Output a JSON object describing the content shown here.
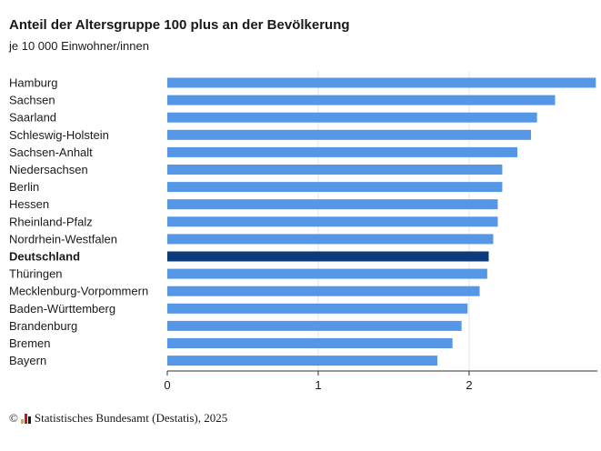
{
  "title": "Anteil der Altersgruppe 100 plus an der Bevölkerung",
  "subtitle": "je 10 000 Einwohner/innen",
  "source": {
    "copyright_symbol": "©",
    "text": "Statistisches Bundesamt (Destatis), 2025",
    "logo_icon": "destatis-logo-icon"
  },
  "colors": {
    "bar": "#5596e6",
    "highlight": "#0c3a7a",
    "grid": "#e5e5e5",
    "axis": "#333333",
    "text": "#1a1a1a",
    "logo": [
      "#e6a817",
      "#c4161c",
      "#1a1a1a"
    ]
  },
  "chart_data": {
    "type": "bar",
    "orientation": "horizontal",
    "title": "Anteil der Altersgruppe 100 plus an der Bevölkerung",
    "subtitle": "je 10 000 Einwohner/innen",
    "xlabel": "",
    "ylabel": "",
    "xlim": [
      0,
      2.85
    ],
    "xticks": [
      0,
      1,
      2
    ],
    "grid": true,
    "highlight": "Deutschland",
    "categories": [
      "Hamburg",
      "Sachsen",
      "Saarland",
      "Schleswig-Holstein",
      "Sachsen-Anhalt",
      "Niedersachsen",
      "Berlin",
      "Hessen",
      "Rheinland-Pfalz",
      "Nordrhein-Westfalen",
      "Deutschland",
      "Thüringen",
      "Mecklenburg-Vorpommern",
      "Baden-Württemberg",
      "Brandenburg",
      "Bremen",
      "Bayern"
    ],
    "values": [
      2.84,
      2.57,
      2.45,
      2.41,
      2.32,
      2.22,
      2.22,
      2.19,
      2.19,
      2.16,
      2.13,
      2.12,
      2.07,
      1.99,
      1.95,
      1.89,
      1.79
    ]
  }
}
